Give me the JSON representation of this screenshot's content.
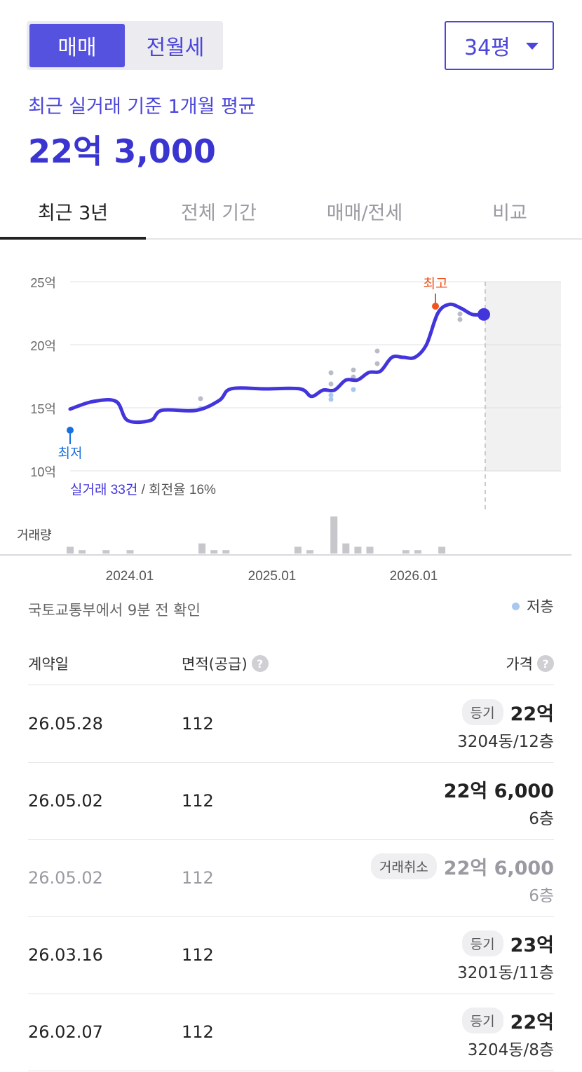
{
  "toggle": {
    "sale": "매매",
    "rent": "전월세"
  },
  "area_select": {
    "value": "34평"
  },
  "summary": {
    "subtitle": "최근 실거래 기준 1개월 평균",
    "avg_price": "22억 3,000"
  },
  "tabs": [
    {
      "label": "최근 3년",
      "active": true
    },
    {
      "label": "전체 기간",
      "active": false
    },
    {
      "label": "매매/전세",
      "active": false
    },
    {
      "label": "비교",
      "active": false
    }
  ],
  "chart_data": {
    "type": "line",
    "y_unit": "억",
    "ylim": [
      10,
      25
    ],
    "y_ticks": [
      "25억",
      "20억",
      "15억",
      "10억"
    ],
    "x_ticks": [
      "2024.01",
      "2025.01",
      "2026.01"
    ],
    "grid": true,
    "series": [
      {
        "x": [
          "2023.05",
          "2023.07",
          "2023.09",
          "2023.10",
          "2023.12",
          "2024.01",
          "2024.04",
          "2024.06",
          "2024.07",
          "2024.10",
          "2025.01",
          "2025.02",
          "2025.03",
          "2025.04",
          "2025.05",
          "2025.06",
          "2025.07",
          "2025.08",
          "2025.09",
          "2025.10",
          "2025.11",
          "2025.12",
          "2026.01",
          "2026.02",
          "2026.03",
          "2026.04",
          "2026.05"
        ],
        "values": [
          14.9,
          15.5,
          15.5,
          14.0,
          14.0,
          14.8,
          14.8,
          15.6,
          16.5,
          16.5,
          16.5,
          15.9,
          16.4,
          16.4,
          17.2,
          17.2,
          17.8,
          17.9,
          19.0,
          19.0,
          19.0,
          20.0,
          22.5,
          23.2,
          22.9,
          22.4,
          22.4
        ]
      }
    ],
    "high_label": "최고",
    "low_label": "최저",
    "volume_label": "거래량",
    "volume": [
      2,
      1,
      0,
      1,
      0,
      1,
      0,
      0,
      0,
      0,
      0,
      3,
      1,
      1,
      0,
      0,
      0,
      0,
      0,
      2,
      1,
      0,
      11,
      3,
      2,
      2,
      0,
      0,
      1,
      1,
      0,
      2
    ],
    "legend": [
      {
        "label": "저층",
        "color": "#a9c8ef"
      }
    ]
  },
  "stats": {
    "count": "실거래 33건",
    "turnover": " / 회전율 16%"
  },
  "source": "국토교통부에서 9분 전 확인",
  "table": {
    "headers": {
      "date": "계약일",
      "area": "면적(공급)",
      "price": "가격"
    },
    "rows": [
      {
        "date": "26.05.28",
        "area": "112",
        "badge": "등기",
        "price": "22억",
        "sub": "3204동/12층",
        "cancelled": false
      },
      {
        "date": "26.05.02",
        "area": "112",
        "badge": "",
        "price": "22억 6,000",
        "sub": "6층",
        "cancelled": false
      },
      {
        "date": "26.05.02",
        "area": "112",
        "badge": "거래취소",
        "price": "22억 6,000",
        "sub": "6층",
        "cancelled": true
      },
      {
        "date": "26.03.16",
        "area": "112",
        "badge": "등기",
        "price": "23억",
        "sub": "3201동/11층",
        "cancelled": false
      },
      {
        "date": "26.02.07",
        "area": "112",
        "badge": "등기",
        "price": "22억",
        "sub": "3204동/8층",
        "cancelled": false
      }
    ]
  }
}
